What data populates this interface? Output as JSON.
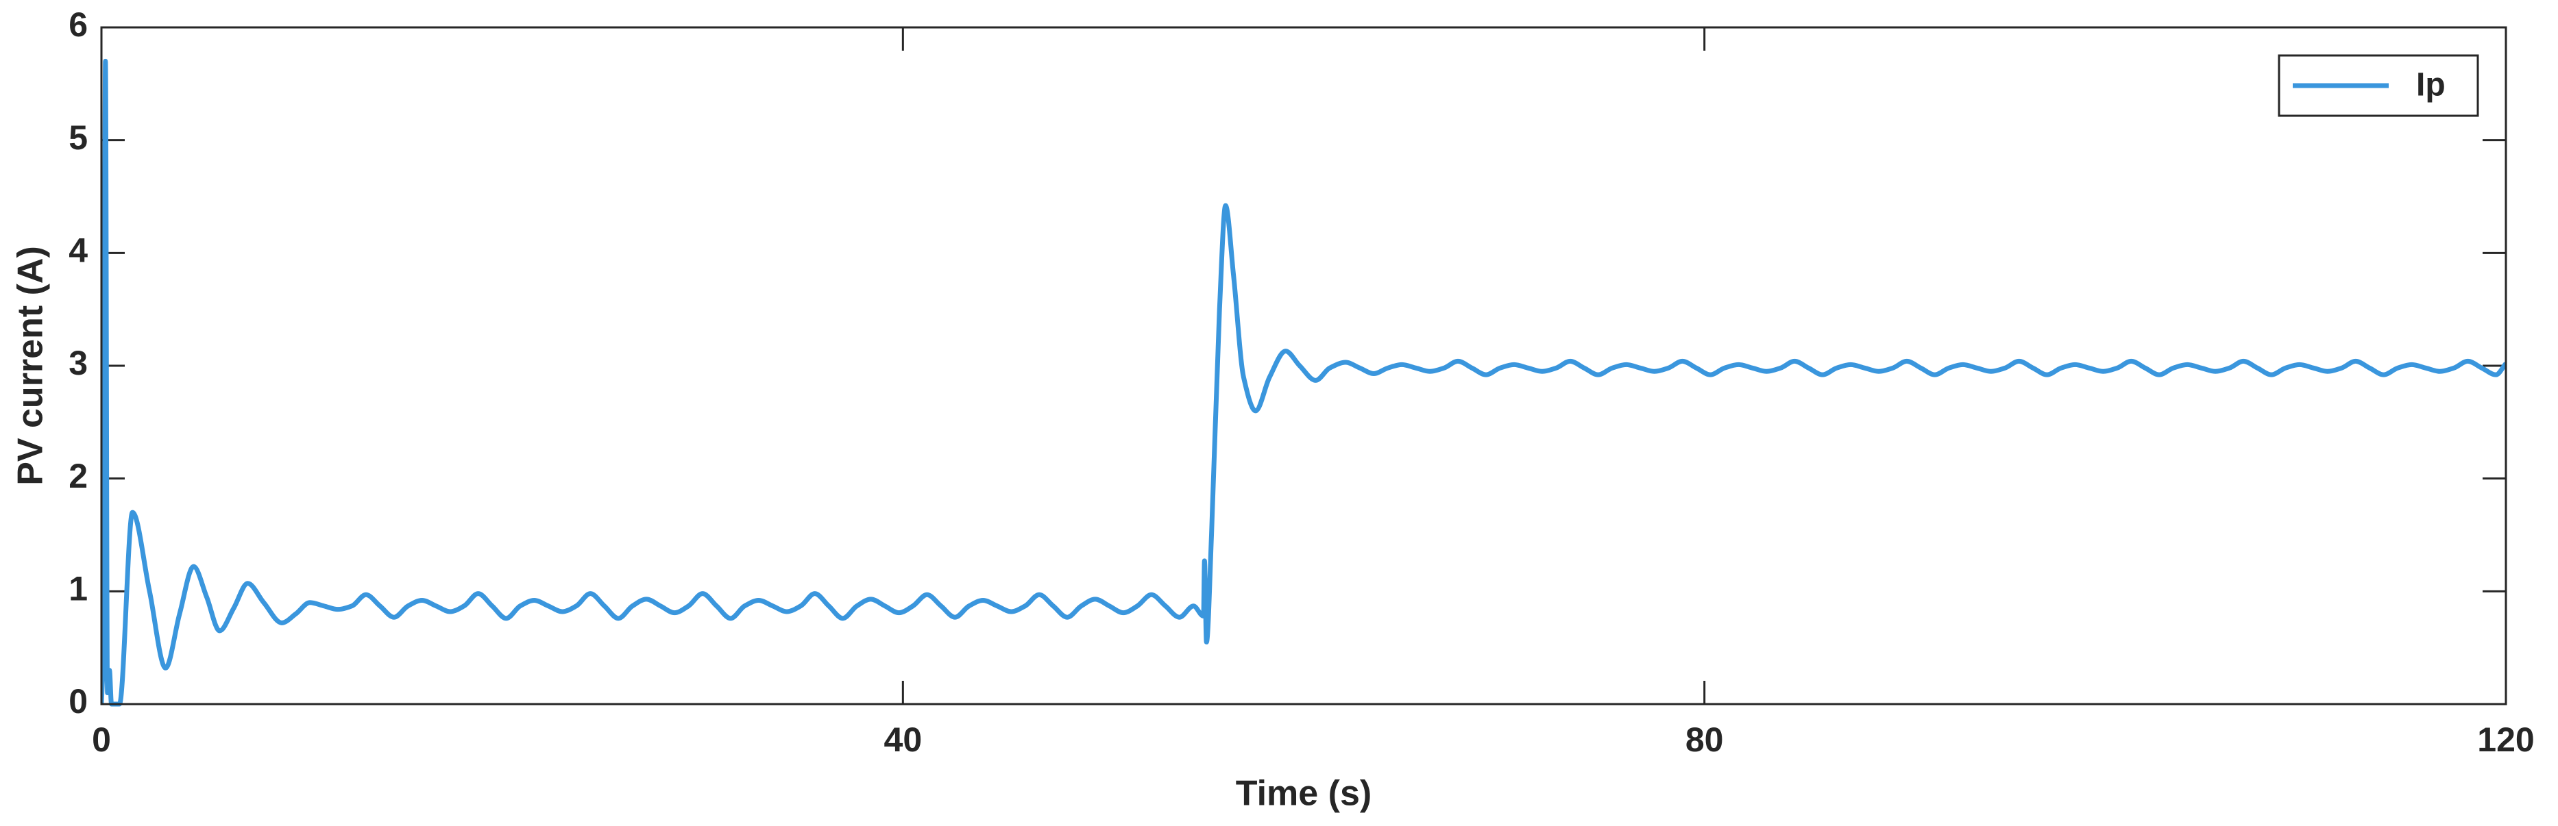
{
  "chart_data": {
    "type": "line",
    "xlabel": "Time (s)",
    "ylabel": "PV current (A)",
    "xlim": [
      0,
      120
    ],
    "ylim": [
      0,
      6
    ],
    "xticks": [
      0,
      40,
      80,
      120
    ],
    "yticks": [
      0,
      1,
      2,
      3,
      4,
      5,
      6
    ],
    "legend": "upper right",
    "series": [
      {
        "name": "Ip",
        "color": "#3a96dd",
        "x": [
          0,
          0.1,
          0.2,
          0.3,
          0.4,
          0.5,
          0.9,
          1.55,
          2.4,
          3.2,
          3.9,
          4.6,
          5.25,
          5.9,
          6.6,
          7.3,
          8.1,
          9.0,
          9.7,
          10.4,
          11.1,
          11.8,
          12.5,
          13.2,
          13.9,
          14.6,
          15.3,
          16.0,
          16.7,
          17.4,
          18.1,
          18.8,
          19.5,
          20.2,
          20.9,
          21.6,
          22.3,
          23.0,
          23.7,
          24.4,
          25.1,
          25.8,
          26.5,
          27.2,
          27.9,
          28.6,
          29.3,
          30.0,
          30.7,
          31.4,
          32.1,
          32.8,
          33.5,
          34.2,
          34.9,
          35.6,
          36.3,
          37.0,
          37.7,
          38.4,
          39.1,
          39.8,
          40.5,
          41.2,
          41.9,
          42.6,
          43.3,
          44.0,
          44.7,
          45.4,
          46.1,
          46.8,
          47.5,
          48.2,
          48.9,
          49.6,
          50.3,
          51.0,
          51.7,
          52.4,
          53.1,
          53.8,
          54.5,
          55.0,
          55.05,
          55.15,
          55.4,
          55.8,
          56.1,
          56.5,
          57.0,
          57.6,
          58.3,
          59.1,
          59.8,
          60.6,
          61.3,
          62.1,
          62.8,
          63.5,
          64.2,
          64.9,
          65.6,
          66.3,
          67.0,
          67.7,
          68.4,
          69.1,
          69.8,
          70.5,
          71.2,
          71.9,
          72.6,
          73.3,
          74.0,
          74.7,
          75.4,
          76.1,
          76.8,
          77.5,
          78.2,
          78.9,
          79.6,
          80.3,
          81.0,
          81.7,
          82.4,
          83.1,
          83.8,
          84.5,
          85.2,
          85.9,
          86.6,
          87.3,
          88.0,
          88.7,
          89.4,
          90.1,
          90.8,
          91.5,
          92.2,
          92.9,
          93.6,
          94.3,
          95.0,
          95.7,
          96.4,
          97.1,
          97.8,
          98.5,
          99.2,
          99.9,
          100.6,
          101.3,
          102.0,
          102.7,
          103.4,
          104.1,
          104.8,
          105.5,
          106.2,
          106.9,
          107.6,
          108.3,
          109.0,
          109.7,
          110.4,
          111.1,
          111.8,
          112.5,
          113.2,
          113.9,
          114.6,
          115.3,
          116.0,
          116.7,
          117.4,
          118.1,
          118.8,
          119.5,
          120.0
        ],
        "values": [
          0,
          0.5,
          5.7,
          0.1,
          0.3,
          0,
          0,
          1.7,
          1.0,
          0.32,
          0.8,
          1.22,
          0.95,
          0.65,
          0.85,
          1.07,
          0.9,
          0.72,
          0.8,
          0.9,
          0.87,
          0.84,
          0.87,
          0.97,
          0.87,
          0.77,
          0.87,
          0.92,
          0.87,
          0.82,
          0.87,
          0.98,
          0.87,
          0.76,
          0.87,
          0.92,
          0.87,
          0.82,
          0.87,
          0.98,
          0.87,
          0.76,
          0.87,
          0.93,
          0.87,
          0.81,
          0.87,
          0.98,
          0.87,
          0.76,
          0.87,
          0.92,
          0.87,
          0.82,
          0.87,
          0.98,
          0.87,
          0.76,
          0.87,
          0.93,
          0.87,
          0.81,
          0.87,
          0.97,
          0.87,
          0.77,
          0.87,
          0.92,
          0.87,
          0.82,
          0.87,
          0.97,
          0.87,
          0.77,
          0.87,
          0.93,
          0.87,
          0.81,
          0.87,
          0.97,
          0.87,
          0.77,
          0.87,
          0.78,
          1.27,
          0.55,
          1.5,
          3.5,
          4.42,
          3.8,
          2.9,
          2.6,
          2.9,
          3.13,
          3.0,
          2.87,
          2.98,
          3.03,
          2.98,
          2.93,
          2.98,
          3.01,
          2.98,
          2.95,
          2.98,
          3.04,
          2.98,
          2.92,
          2.98,
          3.01,
          2.98,
          2.95,
          2.98,
          3.04,
          2.98,
          2.92,
          2.98,
          3.01,
          2.98,
          2.95,
          2.98,
          3.04,
          2.98,
          2.92,
          2.98,
          3.01,
          2.98,
          2.95,
          2.98,
          3.04,
          2.98,
          2.92,
          2.98,
          3.01,
          2.98,
          2.95,
          2.98,
          3.04,
          2.98,
          2.92,
          2.98,
          3.01,
          2.98,
          2.95,
          2.98,
          3.04,
          2.98,
          2.92,
          2.98,
          3.01,
          2.98,
          2.95,
          2.98,
          3.04,
          2.98,
          2.92,
          2.98,
          3.01,
          2.98,
          2.95,
          2.98,
          3.04,
          2.98,
          2.92,
          2.98,
          3.01,
          2.98,
          2.95,
          2.98,
          3.04,
          2.98,
          2.92,
          2.98,
          3.01,
          2.98,
          2.95,
          2.98,
          3.04,
          2.98,
          2.92,
          3.02
        ]
      }
    ]
  }
}
